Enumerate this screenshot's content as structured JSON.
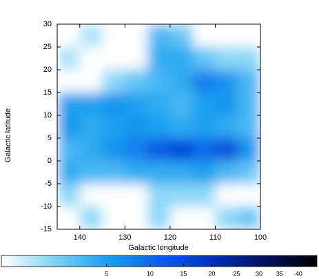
{
  "chart_data": {
    "type": "heatmap",
    "xlabel": "Galactic longitude",
    "ylabel": "Galactic latitude",
    "x": [
      142.5,
      137.5,
      132.5,
      127.5,
      122.5,
      117.5,
      112.5,
      107.5,
      102.5
    ],
    "y": [
      27.5,
      22.5,
      17.5,
      12.5,
      7.5,
      2.5,
      -2.5,
      -7.5,
      -12.5
    ],
    "values": [
      [
        0,
        0.5,
        0,
        0,
        3,
        2,
        0,
        0,
        0
      ],
      [
        0.5,
        0,
        0,
        0,
        4,
        4,
        2,
        1,
        1
      ],
      [
        0,
        0,
        1,
        2,
        3,
        4,
        8,
        6,
        3
      ],
      [
        5,
        5,
        6,
        5,
        4,
        3,
        5,
        6,
        3
      ],
      [
        6,
        4,
        5,
        6,
        5,
        4,
        5,
        4,
        3
      ],
      [
        3,
        4,
        6,
        8,
        12,
        15,
        10,
        14,
        6
      ],
      [
        4,
        3,
        3,
        4,
        4,
        4,
        5,
        3,
        2
      ],
      [
        1,
        0,
        0,
        0,
        1,
        1,
        1,
        0,
        0
      ],
      [
        0,
        1,
        0,
        0,
        1,
        0,
        0,
        1,
        2
      ]
    ],
    "xlim": [
      145,
      100
    ],
    "ylim": [
      -15,
      30
    ],
    "xticks": [
      140,
      130,
      120,
      110,
      100
    ],
    "yticks": [
      -15,
      -10,
      -5,
      0,
      5,
      10,
      15,
      20,
      25,
      30
    ],
    "colormap": [
      "#ffffff",
      "#7fd3f7",
      "#1aa0f0",
      "#0a60e8",
      "#0030c0",
      "#001060",
      "#000000"
    ],
    "colorbar": {
      "lim": [
        0,
        45
      ],
      "scale": "sqrt",
      "ticks": [
        5,
        10,
        15,
        20,
        25,
        30,
        35,
        40
      ]
    }
  }
}
